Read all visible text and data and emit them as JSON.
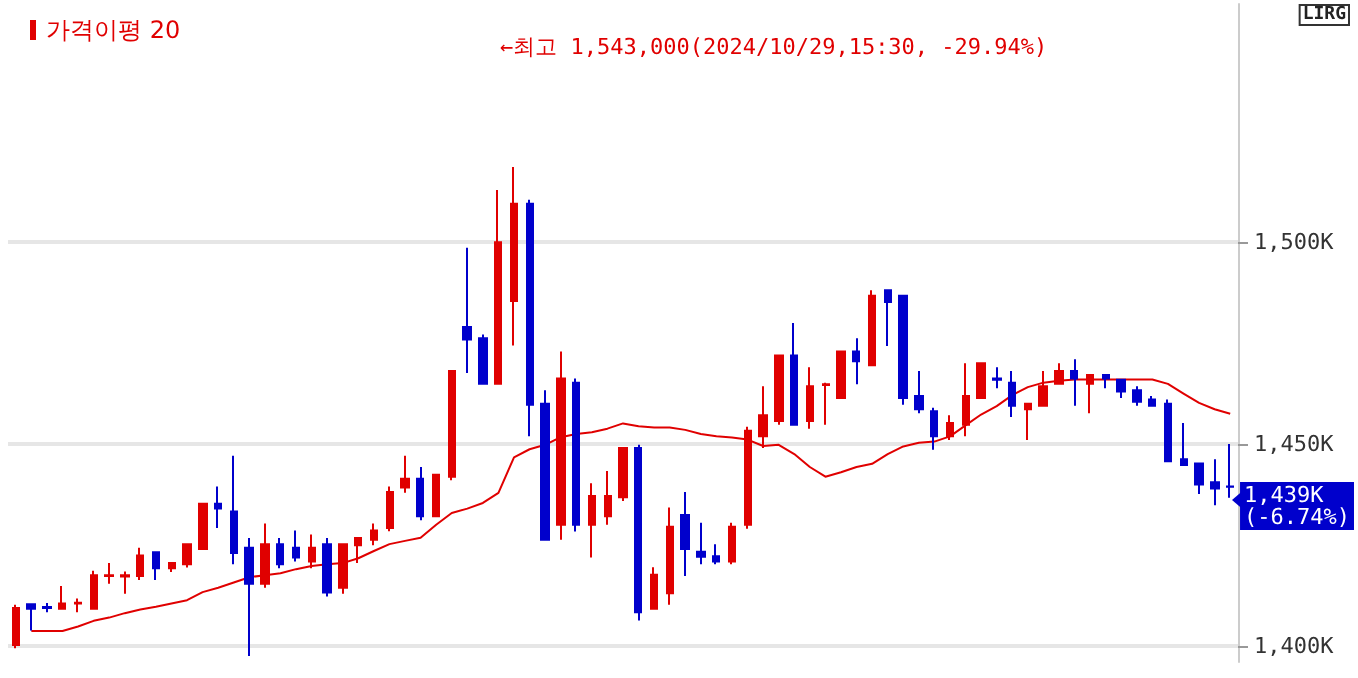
{
  "chart_data": {
    "type": "candlestick",
    "legend": "top left",
    "grid": "y",
    "marker": "none",
    "annotations": [
      "←최고 1,543,000(2024/10/29,15:30, -29.94%)",
      "1,439K\n(-6.74%)",
      "LIRG"
    ],
    "categories": [
      null,
      null,
      null,
      null,
      null,
      null,
      null,
      null,
      null,
      null,
      null,
      null,
      null,
      null,
      null,
      null,
      null,
      null,
      null,
      null,
      null,
      null,
      null,
      null,
      null,
      null,
      null,
      null,
      null,
      null,
      null,
      null,
      null,
      null,
      null,
      null,
      null,
      null,
      null,
      null,
      null,
      null,
      null,
      null,
      null,
      null,
      null,
      null,
      null,
      null,
      null,
      null,
      null,
      null,
      null,
      null,
      null,
      null,
      null,
      null,
      null,
      null,
      null,
      null,
      null,
      null,
      null,
      null,
      null,
      null,
      null,
      null,
      null,
      null,
      null,
      null,
      null,
      null,
      null
    ],
    "ylim": [
      1396,
      1559
    ],
    "yticks": [
      {
        "value": 1400,
        "label": "1,400K"
      },
      {
        "value": 1450,
        "label": "1,450K"
      },
      {
        "value": 1500,
        "label": "1,500K"
      }
    ],
    "ohlc": [
      [
        1400.2,
        1410.2,
        1399.4,
        1409.4
      ],
      [
        1410.3,
        1410.3,
        1403.8,
        1409.2
      ],
      [
        1409.6,
        1410.6,
        1408.3,
        1409.4
      ],
      [
        1409.2,
        1414.8,
        1409.2,
        1410.5
      ],
      [
        1410.5,
        1411.7,
        1408.3,
        1410.7
      ],
      [
        1409.2,
        1418.6,
        1409.2,
        1417.5
      ],
      [
        1417.3,
        1420.5,
        1415.4,
        1417.5
      ],
      [
        1417.2,
        1418.4,
        1412.9,
        1417.5
      ],
      [
        1417.3,
        1424.3,
        1416.3,
        1422.4
      ],
      [
        1423.2,
        1423.2,
        1416.3,
        1419.2
      ],
      [
        1419.2,
        1420.5,
        1418.3,
        1420.5
      ],
      [
        1420.2,
        1425.2,
        1419.4,
        1425.2
      ],
      [
        1424,
        1435.2,
        1424,
        1435.2
      ],
      [
        1435.2,
        1439.5,
        1429.2,
        1434
      ],
      [
        1433.3,
        1447.1,
        1420.2,
        1423
      ],
      [
        1424.3,
        1426.7,
        1397.5,
        1415.4
      ],
      [
        1415.4,
        1430.3,
        1414.4,
        1425.2
      ],
      [
        1425.2,
        1426.7,
        1419.2,
        1420.2
      ],
      [
        1424.3,
        1428.6,
        1420.9,
        1421.9
      ],
      [
        1420.9,
        1427.6,
        1419.2,
        1424.3
      ],
      [
        1425.2,
        1426.7,
        1412.2,
        1413.2
      ],
      [
        1414.4,
        1425.2,
        1412.9,
        1425.2
      ],
      [
        1424.9,
        1426.7,
        1420.5,
        1426.7
      ],
      [
        1426.3,
        1430.3,
        1424.9,
        1428.6
      ],
      [
        1429.2,
        1439.5,
        1428.4,
        1438.1
      ],
      [
        1439.2,
        1447.1,
        1437.9,
        1441.4
      ],
      [
        1441.4,
        1444.3,
        1431.1,
        1432.1
      ],
      [
        1432.1,
        1442.4,
        1432.1,
        1442.4
      ],
      [
        1441.9,
        1468.1,
        1441,
        1468.1
      ],
      [
        1479,
        1498.6,
        1467.6,
        1475.9
      ],
      [
        1476.2,
        1477.1,
        1464.9,
        1464.9
      ],
      [
        1464.9,
        1512.9,
        1464.9,
        1500
      ],
      [
        1485.4,
        1518.6,
        1474.4,
        1509.5
      ],
      [
        1509.5,
        1510.5,
        1451.9,
        1459.7
      ],
      [
        1460,
        1463.3,
        1426.3,
        1426.3
      ],
      [
        1430,
        1472.9,
        1426.3,
        1466.2
      ],
      [
        1465.2,
        1466.2,
        1428.3,
        1430
      ],
      [
        1430,
        1440.3,
        1421.9,
        1437.1
      ],
      [
        1432.1,
        1443.3,
        1430,
        1437.1
      ],
      [
        1436.8,
        1449,
        1435.9,
        1449
      ],
      [
        1449,
        1449.8,
        1406.3,
        1408.3
      ],
      [
        1409.2,
        1419.5,
        1409.2,
        1417.6
      ],
      [
        1413,
        1434.3,
        1410.2,
        1429.5
      ],
      [
        1432.4,
        1438.1,
        1417.3,
        1424
      ],
      [
        1423.3,
        1430.5,
        1420.2,
        1422.1
      ],
      [
        1422.2,
        1425.2,
        1420.2,
        1420.9
      ],
      [
        1420.9,
        1430.5,
        1420.2,
        1429.5
      ],
      [
        1430,
        1454.3,
        1429,
        1453.3
      ],
      [
        1451.9,
        1464.3,
        1449,
        1457.1
      ],
      [
        1455.7,
        1471.9,
        1454.8,
        1471.9
      ],
      [
        1471.9,
        1480,
        1454.8,
        1454.8
      ],
      [
        1455.7,
        1469,
        1453.8,
        1464.3
      ],
      [
        1464.6,
        1465.2,
        1454.8,
        1464.8
      ],
      [
        1461.4,
        1472.9,
        1461.4,
        1472.9
      ],
      [
        1472.9,
        1476.2,
        1464.8,
        1470.5
      ],
      [
        1469.5,
        1488.1,
        1469.5,
        1486.7
      ],
      [
        1488.1,
        1488.1,
        1474.3,
        1485.2
      ],
      [
        1486.7,
        1486.7,
        1459.7,
        1461.4
      ],
      [
        1461.9,
        1468.1,
        1457.6,
        1458.6
      ],
      [
        1458.1,
        1459,
        1448.6,
        1451.9
      ],
      [
        1451.9,
        1457.1,
        1451,
        1455.2
      ],
      [
        1454.8,
        1470,
        1451.9,
        1461.9
      ],
      [
        1461.4,
        1470,
        1461.4,
        1470
      ],
      [
        1466.2,
        1469,
        1463.8,
        1465.9
      ],
      [
        1465.2,
        1468.1,
        1456.7,
        1459.5
      ],
      [
        1458.6,
        1460,
        1451,
        1460
      ],
      [
        1459.5,
        1468.1,
        1459.5,
        1464.3
      ],
      [
        1464.9,
        1470,
        1464.9,
        1468.1
      ],
      [
        1468.1,
        1471,
        1459.5,
        1466.2
      ],
      [
        1464.9,
        1467.1,
        1457.6,
        1467.1
      ],
      [
        1467.1,
        1467.1,
        1463.8,
        1466.2
      ],
      [
        1465.9,
        1465.9,
        1461.4,
        1463
      ],
      [
        1463.3,
        1464.3,
        1459.5,
        1460.5
      ],
      [
        1461,
        1461.9,
        1459.5,
        1459.5
      ],
      [
        1460,
        1461,
        1445.7,
        1445.7
      ],
      [
        1446.2,
        1455.2,
        1444.8,
        1444.8
      ],
      [
        1445.2,
        1445.2,
        1437.6,
        1440
      ],
      [
        1440.5,
        1446.2,
        1434.8,
        1439
      ],
      [
        1439.5,
        1450,
        1436.7,
        1439.4
      ]
    ],
    "colors": [
      "#e00000",
      "#0000cc",
      "#0000cc",
      "#e00000",
      "#e00000",
      "#e00000",
      "#e00000",
      "#e00000",
      "#e00000",
      "#0000cc",
      "#e00000",
      "#e00000",
      "#e00000",
      "#0000cc",
      "#0000cc",
      "#0000cc",
      "#e00000",
      "#0000cc",
      "#0000cc",
      "#e00000",
      "#0000cc",
      "#e00000",
      "#e00000",
      "#e00000",
      "#e00000",
      "#e00000",
      "#0000cc",
      "#e00000",
      "#e00000",
      "#0000cc",
      "#0000cc",
      "#e00000",
      "#e00000",
      "#0000cc",
      "#0000cc",
      "#e00000",
      "#0000cc",
      "#e00000",
      "#e00000",
      "#e00000",
      "#0000cc",
      "#e00000",
      "#e00000",
      "#0000cc",
      "#0000cc",
      "#0000cc",
      "#e00000",
      "#e00000",
      "#e00000",
      "#e00000",
      "#0000cc",
      "#e00000",
      "#e00000",
      "#e00000",
      "#0000cc",
      "#e00000",
      "#0000cc",
      "#0000cc",
      "#0000cc",
      "#0000cc",
      "#e00000",
      "#e00000",
      "#e00000",
      "#0000cc",
      "#0000cc",
      "#e00000",
      "#e00000",
      "#e00000",
      "#0000cc",
      "#e00000",
      "#0000cc",
      "#0000cc",
      "#0000cc",
      "#0000cc",
      "#0000cc",
      "#0000cc",
      "#0000cc",
      "#0000cc",
      "#0000cc"
    ],
    "series": [
      {
        "type": "line",
        "name": "가격이평 20",
        "color": "#e00000",
        "values": [
          null,
          1403.7,
          1403.7,
          1403.7,
          1404.8,
          1406.2,
          1407,
          1408.1,
          1409,
          1409.7,
          1410.5,
          1411.3,
          1413.3,
          1414.4,
          1415.7,
          1417,
          1417.5,
          1418,
          1419,
          1419.8,
          1420.2,
          1420.5,
          1421.7,
          1423.5,
          1425.2,
          1426,
          1426.8,
          1430,
          1432.9,
          1434,
          1435.4,
          1437.9,
          1446.7,
          1448.7,
          1449.8,
          1451.7,
          1452.5,
          1452.9,
          1453.8,
          1455.1,
          1454.4,
          1454.1,
          1454.1,
          1453.5,
          1452.5,
          1451.9,
          1451.6,
          1451.1,
          1449.5,
          1449.8,
          1447.5,
          1444.3,
          1441.9,
          1443,
          1444.3,
          1445.1,
          1447.5,
          1449.4,
          1450.3,
          1450.6,
          1451.9,
          1454.6,
          1457.3,
          1459.4,
          1462.1,
          1464.1,
          1465.2,
          1465.7,
          1466,
          1466,
          1466,
          1466,
          1466,
          1466,
          1464.9,
          1462.5,
          1460.2,
          1458.6,
          1457.5
        ]
      }
    ]
  }
}
